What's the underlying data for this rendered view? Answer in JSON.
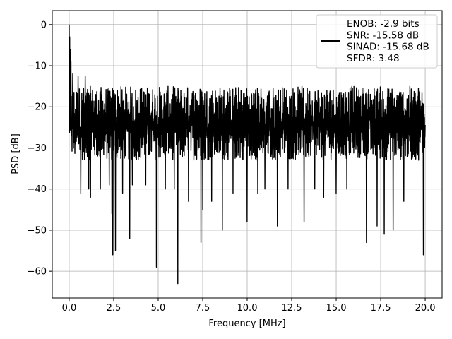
{
  "chart_data": {
    "type": "line",
    "xlabel": "Frequency [MHz]",
    "ylabel": "PSD [dB]",
    "xlim": [
      -0.95,
      20.95
    ],
    "ylim": [
      -66.5,
      3.4
    ],
    "xticks": [
      0.0,
      2.5,
      5.0,
      7.5,
      10.0,
      12.5,
      15.0,
      17.5,
      20.0
    ],
    "xtick_labels": [
      "0.0",
      "2.5",
      "5.0",
      "7.5",
      "10.0",
      "12.5",
      "15.0",
      "17.5",
      "20.0"
    ],
    "yticks": [
      0,
      -10,
      -20,
      -30,
      -40,
      -50,
      -60
    ],
    "ytick_labels": [
      "0",
      "−10",
      "−20",
      "−30",
      "−40",
      "−50",
      "−60"
    ],
    "grid": true,
    "legend_position": "top-right",
    "series": [
      {
        "name": "ENOB: -2.9 bits\nSNR: -15.58 dB\nSINAD: -15.68 dB\nSFDR: 3.48",
        "color": "#000000",
        "x_start": 0.0,
        "x_end": 20.0,
        "baseline_db": -24.5,
        "noise_band_db": [
          -33,
          -15
        ],
        "peaks": [
          [
            0.0,
            0.0
          ],
          [
            0.03,
            -3.0
          ],
          [
            0.06,
            -6.0
          ],
          [
            0.1,
            -9.0
          ],
          [
            0.2,
            -12.0
          ],
          [
            0.5,
            -12.5
          ],
          [
            0.9,
            -12.5
          ]
        ],
        "dips": [
          [
            0.65,
            -41.0
          ],
          [
            1.1,
            -40.0
          ],
          [
            1.2,
            -42.0
          ],
          [
            1.75,
            -40.0
          ],
          [
            2.25,
            -39.0
          ],
          [
            2.4,
            -46.0
          ],
          [
            2.45,
            -56.0
          ],
          [
            2.6,
            -55.0
          ],
          [
            3.0,
            -41.0
          ],
          [
            3.4,
            -52.0
          ],
          [
            3.55,
            -39.0
          ],
          [
            4.3,
            -39.0
          ],
          [
            4.9,
            -59.0
          ],
          [
            5.4,
            -40.0
          ],
          [
            5.9,
            -40.0
          ],
          [
            6.1,
            -63.0
          ],
          [
            6.7,
            -43.0
          ],
          [
            7.4,
            -53.0
          ],
          [
            7.5,
            -45.0
          ],
          [
            8.0,
            -43.0
          ],
          [
            8.6,
            -50.0
          ],
          [
            9.2,
            -41.0
          ],
          [
            10.0,
            -48.0
          ],
          [
            10.6,
            -41.0
          ],
          [
            11.0,
            -40.0
          ],
          [
            11.7,
            -49.0
          ],
          [
            12.3,
            -40.0
          ],
          [
            13.2,
            -48.0
          ],
          [
            13.8,
            -40.0
          ],
          [
            14.3,
            -42.0
          ],
          [
            15.0,
            -41.0
          ],
          [
            15.6,
            -40.0
          ],
          [
            16.7,
            -53.0
          ],
          [
            17.3,
            -49.0
          ],
          [
            17.7,
            -51.0
          ],
          [
            18.2,
            -50.0
          ],
          [
            18.8,
            -43.0
          ],
          [
            19.9,
            -56.0
          ]
        ]
      }
    ]
  }
}
